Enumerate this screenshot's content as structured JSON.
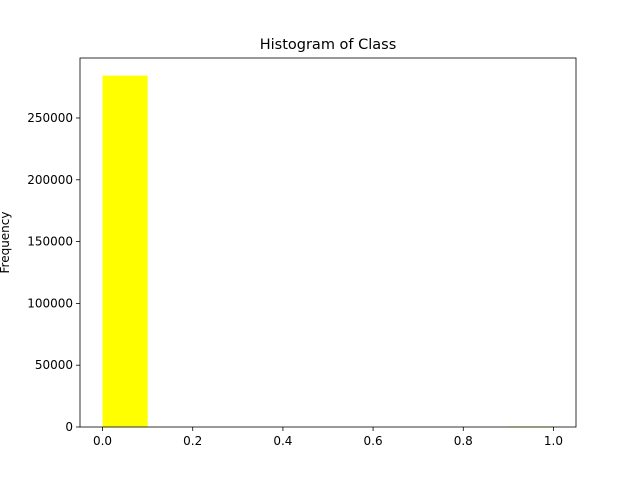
{
  "chart_data": {
    "type": "bar",
    "title": "Histogram of Class",
    "xlabel": "",
    "ylabel": "Frequency",
    "bins": [
      {
        "x0": 0.0,
        "x1": 0.1,
        "count": 284315
      },
      {
        "x0": 0.1,
        "x1": 0.2,
        "count": 0
      },
      {
        "x0": 0.2,
        "x1": 0.3,
        "count": 0
      },
      {
        "x0": 0.3,
        "x1": 0.4,
        "count": 0
      },
      {
        "x0": 0.4,
        "x1": 0.5,
        "count": 0
      },
      {
        "x0": 0.5,
        "x1": 0.6,
        "count": 0
      },
      {
        "x0": 0.6,
        "x1": 0.7,
        "count": 0
      },
      {
        "x0": 0.7,
        "x1": 0.8,
        "count": 0
      },
      {
        "x0": 0.8,
        "x1": 0.9,
        "count": 0
      },
      {
        "x0": 0.9,
        "x1": 1.0,
        "count": 492
      }
    ],
    "xlim": [
      -0.05,
      1.05
    ],
    "ylim": [
      0,
      298531
    ],
    "xticks": [
      "0.0",
      "0.2",
      "0.4",
      "0.6",
      "0.8",
      "1.0"
    ],
    "yticks": [
      "0",
      "50000",
      "100000",
      "150000",
      "200000",
      "250000"
    ],
    "bar_color": "#ffff00",
    "grid": false,
    "legend": "none"
  }
}
